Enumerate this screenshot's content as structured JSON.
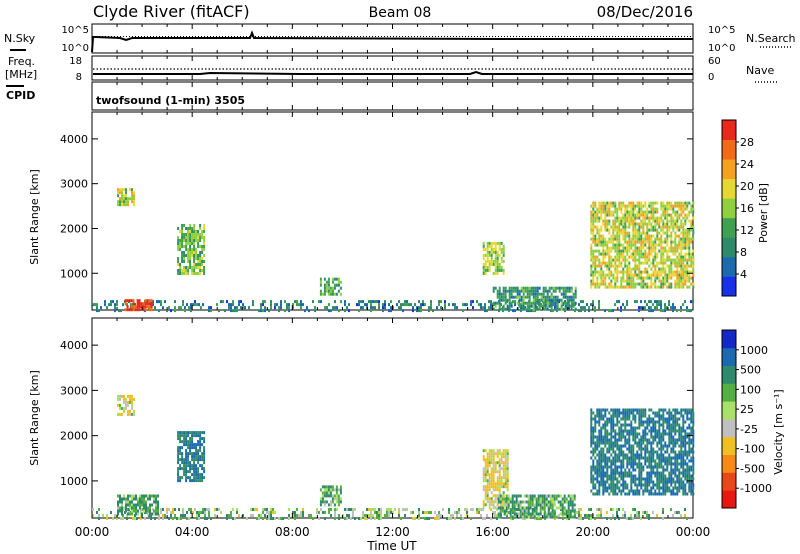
{
  "header": {
    "station": "Clyde River (fitACF)",
    "beam": "Beam 08",
    "date": "08/Dec/2016"
  },
  "strip_nsky": {
    "left_label": "N.Sky",
    "left_ticks": [
      "10^5",
      "10^0"
    ],
    "right_ticks": [
      "10^5",
      "10^0"
    ],
    "right_label": "N.Search"
  },
  "strip_freq": {
    "left_label_1": "Freq.",
    "left_label_2": "[MHz]",
    "left_ticks": [
      "18",
      "8"
    ],
    "right_ticks": [
      "60",
      "0"
    ],
    "right_label": "Nave"
  },
  "cpid": {
    "label": "CPID",
    "text": "twofsound (1-min) 3505"
  },
  "time_axis": {
    "labels": [
      "00:00",
      "04:00",
      "08:00",
      "12:00",
      "16:00",
      "20:00",
      "00:00"
    ],
    "title": "Time UT"
  },
  "chart_data": [
    {
      "type": "heatmap",
      "panel": "power",
      "ylabel": "Slant Range [km]",
      "yticks": [
        "1000",
        "2000",
        "3000",
        "4000"
      ],
      "ylim": [
        180,
        4600
      ],
      "xlim_hours": [
        0,
        24
      ],
      "colorbar": {
        "title": "Power [dB]",
        "ticks": [
          "4",
          "8",
          "12",
          "16",
          "20",
          "24",
          "28"
        ],
        "range": [
          0,
          32
        ],
        "colors": [
          "#1830e8",
          "#1a6ab0",
          "#2e8a6a",
          "#3ea050",
          "#8fcf40",
          "#e6d830",
          "#f5a020",
          "#f06a18",
          "#e82818"
        ]
      },
      "echo_regions": [
        {
          "t_start": 0.0,
          "t_end": 24.0,
          "r_min": 180,
          "r_max": 400,
          "level": 8
        },
        {
          "t_start": 1.3,
          "t_end": 2.4,
          "r_min": 200,
          "r_max": 420,
          "level": 30
        },
        {
          "t_start": 1.0,
          "t_end": 1.7,
          "r_min": 2500,
          "r_max": 2900,
          "level": 18
        },
        {
          "t_start": 3.4,
          "t_end": 4.5,
          "r_min": 1000,
          "r_max": 2100,
          "level": 14
        },
        {
          "t_start": 9.1,
          "t_end": 9.9,
          "r_min": 500,
          "r_max": 900,
          "level": 12
        },
        {
          "t_start": 15.6,
          "t_end": 16.4,
          "r_min": 1000,
          "r_max": 1700,
          "level": 16
        },
        {
          "t_start": 16.0,
          "t_end": 19.3,
          "r_min": 220,
          "r_max": 700,
          "level": 10
        },
        {
          "t_start": 19.9,
          "t_end": 24.0,
          "r_min": 700,
          "r_max": 2600,
          "level": 18
        }
      ]
    },
    {
      "type": "heatmap",
      "panel": "velocity",
      "ylabel": "Slant Range [km]",
      "yticks": [
        "1000",
        "2000",
        "3000",
        "4000"
      ],
      "ylim": [
        180,
        4600
      ],
      "xlim_hours": [
        0,
        24
      ],
      "colorbar": {
        "title": "Velocity [m s⁻¹]",
        "ticks": [
          "1000",
          "500",
          "100",
          "25",
          "-25",
          "-100",
          "-500",
          "-1000"
        ],
        "colors": [
          "#1428c8",
          "#1a6ab0",
          "#2e8a6a",
          "#54b043",
          "#a8e068",
          "#c0c0c0",
          "#f0c020",
          "#f58a18",
          "#e84818",
          "#e81810"
        ]
      },
      "echo_regions": [
        {
          "t_start": 0.0,
          "t_end": 24.0,
          "r_min": 180,
          "r_max": 400,
          "level": 25
        },
        {
          "t_start": 1.0,
          "t_end": 2.6,
          "r_min": 250,
          "r_max": 700,
          "level": 100
        },
        {
          "t_start": 1.0,
          "t_end": 1.7,
          "r_min": 2500,
          "r_max": 2900,
          "level": -100
        },
        {
          "t_start": 3.4,
          "t_end": 4.5,
          "r_min": 1000,
          "r_max": 2100,
          "level": 500
        },
        {
          "t_start": 9.1,
          "t_end": 9.9,
          "r_min": 500,
          "r_max": 900,
          "level": 100
        },
        {
          "t_start": 15.6,
          "t_end": 16.6,
          "r_min": 400,
          "r_max": 1700,
          "level": -100
        },
        {
          "t_start": 16.2,
          "t_end": 19.3,
          "r_min": 220,
          "r_max": 700,
          "level": 100
        },
        {
          "t_start": 19.9,
          "t_end": 24.0,
          "r_min": 700,
          "r_max": 2600,
          "level": 500
        }
      ]
    }
  ]
}
